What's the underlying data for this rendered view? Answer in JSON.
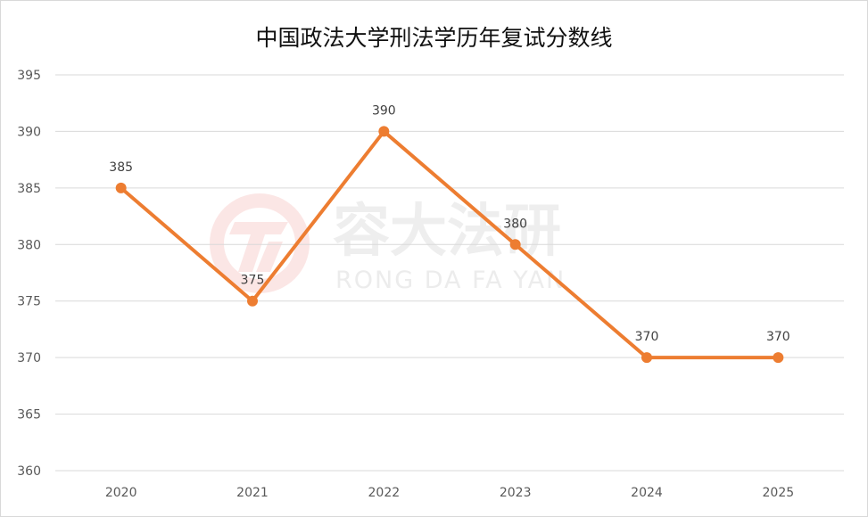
{
  "watermark": {
    "brand_cn": "容大法研",
    "brand_en": "RONG DA FA YAN"
  },
  "chart_data": {
    "type": "line",
    "title": "中国政法大学刑法学历年复试分数线",
    "categories": [
      "2020",
      "2021",
      "2022",
      "2023",
      "2024",
      "2025"
    ],
    "series": [
      {
        "values": [
          385,
          375,
          390,
          380,
          370,
          370
        ],
        "color": "#ed7d31"
      }
    ],
    "ylim": [
      360,
      395
    ],
    "yticks": [
      360,
      365,
      370,
      375,
      380,
      385,
      390,
      395
    ],
    "grid": true,
    "legend": "none",
    "data_labels": true
  }
}
